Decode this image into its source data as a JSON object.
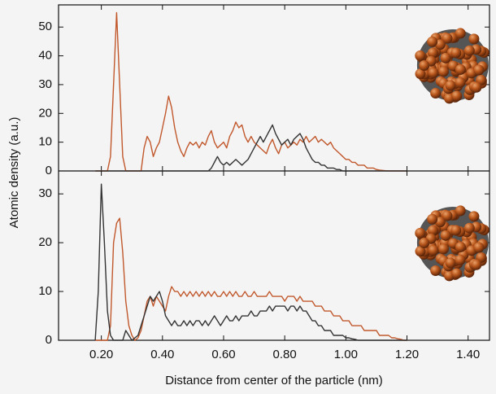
{
  "chart_data": [
    {
      "type": "line",
      "ylabel": "Atomic density (a.u.)",
      "xlim": [
        0.06,
        1.47
      ],
      "ylim": [
        0,
        57.7
      ],
      "yticks": [
        0,
        10,
        20,
        30,
        40,
        50
      ],
      "x": [
        0.18,
        0.19,
        0.2,
        0.21,
        0.22,
        0.23,
        0.24,
        0.25,
        0.26,
        0.27,
        0.28,
        0.29,
        0.3,
        0.31,
        0.32,
        0.33,
        0.34,
        0.35,
        0.36,
        0.37,
        0.38,
        0.39,
        0.4,
        0.41,
        0.42,
        0.43,
        0.44,
        0.45,
        0.46,
        0.47,
        0.48,
        0.49,
        0.5,
        0.51,
        0.52,
        0.53,
        0.54,
        0.55,
        0.56,
        0.57,
        0.58,
        0.59,
        0.6,
        0.61,
        0.62,
        0.63,
        0.64,
        0.65,
        0.66,
        0.67,
        0.68,
        0.69,
        0.7,
        0.71,
        0.72,
        0.73,
        0.74,
        0.75,
        0.76,
        0.77,
        0.78,
        0.79,
        0.8,
        0.81,
        0.82,
        0.83,
        0.84,
        0.85,
        0.86,
        0.87,
        0.88,
        0.89,
        0.9,
        0.91,
        0.92,
        0.93,
        0.94,
        0.95,
        0.96,
        0.97,
        0.98,
        0.99,
        1.0,
        1.01,
        1.02,
        1.03,
        1.04,
        1.05,
        1.06,
        1.07,
        1.08,
        1.09,
        1.1,
        1.11,
        1.12,
        1.13,
        1.14,
        1.15,
        1.16,
        1.17,
        1.18,
        1.19,
        1.2
      ],
      "series": [
        {
          "color": "#c1582c",
          "values": [
            0,
            0,
            0,
            0,
            0,
            5,
            30,
            55,
            30,
            5,
            0,
            0,
            0,
            0,
            0,
            0,
            8,
            12,
            10,
            5,
            8,
            10,
            15,
            20,
            26,
            22,
            15,
            10,
            7,
            5,
            8,
            10,
            9,
            10,
            8,
            10,
            9,
            12,
            14,
            10,
            8,
            9,
            10,
            8,
            12,
            14,
            17,
            15,
            16,
            12,
            10,
            12,
            10,
            9,
            8,
            7,
            6,
            9,
            11,
            8,
            6,
            9,
            10,
            8,
            9,
            10,
            9,
            11,
            10,
            12,
            10,
            11,
            12,
            10,
            11,
            10,
            9,
            10,
            8,
            7,
            6,
            5,
            4,
            4,
            3,
            3,
            2,
            2,
            2,
            1,
            1,
            1,
            0.5,
            0.3,
            0.2,
            0.1,
            0,
            0,
            0,
            0,
            0,
            0,
            0
          ]
        },
        {
          "color": "#333333",
          "values": [
            0,
            0,
            0,
            0,
            0,
            0,
            0,
            0,
            0,
            0,
            0,
            0,
            0,
            0,
            0,
            0,
            0,
            0,
            0,
            0,
            0,
            0,
            0,
            0,
            0,
            0,
            0,
            0,
            0,
            0,
            0,
            0,
            0,
            0,
            0,
            0,
            0,
            0,
            1,
            3,
            5,
            3,
            2,
            3,
            2,
            3,
            4,
            3,
            2,
            3,
            4,
            6,
            8,
            10,
            12,
            10,
            12,
            14,
            16,
            13,
            11,
            9,
            10,
            11,
            9,
            11,
            12,
            13,
            11,
            8,
            6,
            4,
            3,
            3,
            2,
            2,
            1,
            1,
            1,
            0.5,
            0.5,
            0,
            0,
            0,
            0,
            0,
            0,
            0,
            0,
            0,
            0,
            0,
            0,
            0,
            0,
            0,
            0,
            0,
            0,
            0,
            0,
            0,
            0
          ]
        }
      ]
    },
    {
      "type": "line",
      "xlabel": "Distance from center of the particle (nm)",
      "xlim": [
        0.06,
        1.47
      ],
      "ylim": [
        0,
        34.7
      ],
      "yticks": [
        0,
        10,
        20,
        30
      ],
      "xticks": [
        {
          "value": 0.2,
          "label": "0.20"
        },
        {
          "value": 0.4,
          "label": "0.40"
        },
        {
          "value": 0.6,
          "label": "0.60"
        },
        {
          "value": 0.8,
          "label": "0.80"
        },
        {
          "value": 1.0,
          "label": "1.00"
        },
        {
          "value": 1.2,
          "label": "1.20"
        },
        {
          "value": 1.4,
          "label": "1.40"
        }
      ],
      "x": [
        0.18,
        0.19,
        0.2,
        0.21,
        0.22,
        0.23,
        0.24,
        0.25,
        0.26,
        0.27,
        0.28,
        0.29,
        0.3,
        0.31,
        0.32,
        0.33,
        0.34,
        0.35,
        0.36,
        0.37,
        0.38,
        0.39,
        0.4,
        0.41,
        0.42,
        0.43,
        0.44,
        0.45,
        0.46,
        0.47,
        0.48,
        0.49,
        0.5,
        0.51,
        0.52,
        0.53,
        0.54,
        0.55,
        0.56,
        0.57,
        0.58,
        0.59,
        0.6,
        0.61,
        0.62,
        0.63,
        0.64,
        0.65,
        0.66,
        0.67,
        0.68,
        0.69,
        0.7,
        0.71,
        0.72,
        0.73,
        0.74,
        0.75,
        0.76,
        0.77,
        0.78,
        0.79,
        0.8,
        0.81,
        0.82,
        0.83,
        0.84,
        0.85,
        0.86,
        0.87,
        0.88,
        0.89,
        0.9,
        0.91,
        0.92,
        0.93,
        0.94,
        0.95,
        0.96,
        0.97,
        0.98,
        0.99,
        1.0,
        1.01,
        1.02,
        1.03,
        1.04,
        1.05,
        1.06,
        1.07,
        1.08,
        1.09,
        1.1,
        1.11,
        1.12,
        1.13,
        1.14,
        1.15,
        1.16,
        1.17,
        1.18,
        1.19,
        1.2
      ],
      "series": [
        {
          "color": "#c1582c",
          "values": [
            0,
            0,
            0,
            0,
            0,
            3,
            20,
            24,
            25,
            18,
            8,
            3,
            1,
            0,
            0.5,
            2,
            5,
            8,
            9,
            7,
            9,
            8,
            7,
            6,
            9,
            11,
            10,
            10,
            9,
            10,
            9,
            10,
            9,
            10,
            9,
            10,
            9,
            10,
            9,
            10,
            9,
            9,
            10,
            9,
            10,
            9,
            10,
            9,
            9,
            10,
            9,
            9,
            10,
            9,
            9,
            9,
            9,
            10,
            9,
            9,
            9,
            9,
            8,
            9,
            9,
            9,
            8,
            9,
            8,
            8,
            8,
            8,
            7,
            7,
            7,
            6,
            6,
            6,
            5,
            5,
            5,
            4,
            4,
            4,
            3,
            3,
            3,
            3,
            2,
            2,
            2,
            2,
            2,
            1,
            1,
            1,
            1,
            0.5,
            0.5,
            0.3,
            0.2,
            0,
            0
          ]
        },
        {
          "color": "#333333",
          "values": [
            0,
            10,
            32,
            20,
            6,
            1,
            0,
            0,
            0,
            0,
            2,
            1,
            0,
            0.5,
            1,
            3,
            5,
            7,
            9,
            8,
            9,
            10,
            8,
            5,
            4,
            3,
            4,
            3,
            3,
            4,
            3,
            4,
            3,
            4,
            4,
            3,
            4,
            3,
            4,
            5,
            4,
            3,
            4,
            5,
            4,
            4,
            5,
            4,
            5,
            5,
            5,
            6,
            5,
            5,
            6,
            6,
            6,
            7,
            6,
            7,
            7,
            7,
            7,
            6,
            7,
            7,
            6,
            7,
            6,
            6,
            5,
            4,
            4,
            3,
            3,
            2,
            2,
            2,
            1,
            1,
            1,
            1,
            0.5,
            0.5,
            0.3,
            0.2,
            0,
            0,
            0,
            0,
            0,
            0,
            0,
            0,
            0,
            0,
            0,
            0,
            0,
            0,
            0,
            0,
            0
          ]
        }
      ]
    }
  ]
}
